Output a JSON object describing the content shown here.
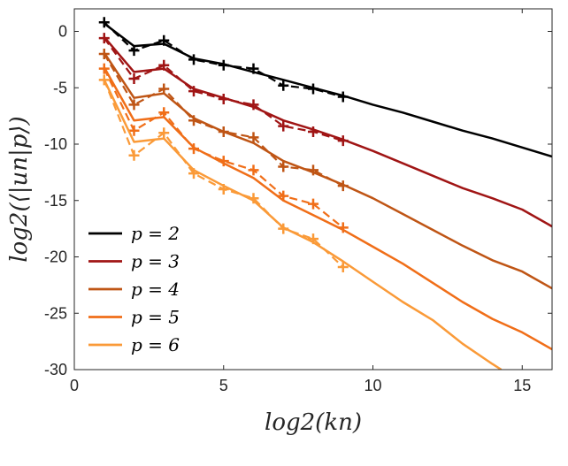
{
  "chart_data": {
    "type": "line",
    "xlabel": "log2(kn)",
    "ylabel": "log2(⟨|un|p⟩)",
    "xlim": [
      0,
      16
    ],
    "ylim": [
      -30,
      2
    ],
    "xticks": [
      0,
      5,
      10,
      15
    ],
    "yticks": [
      0,
      -5,
      -10,
      -15,
      -20,
      -25,
      -30
    ],
    "legend_position": "bottom-left",
    "grid": false,
    "series": [
      {
        "name": "p = 2",
        "color": "#000000",
        "solid": {
          "x": [
            1,
            2,
            3,
            4,
            5,
            6,
            7,
            8,
            9,
            10,
            11,
            12,
            13,
            14,
            15,
            16
          ],
          "y": [
            0.7,
            -1.3,
            -1.1,
            -2.4,
            -2.9,
            -3.6,
            -4.3,
            -5.0,
            -5.7,
            -6.5,
            -7.2,
            -8.0,
            -8.8,
            -9.5,
            -10.3,
            -11.1
          ]
        },
        "dashed": {
          "x": [
            1,
            2,
            3,
            4,
            5,
            6,
            7,
            8,
            9
          ],
          "y": [
            0.8,
            -1.7,
            -0.8,
            -2.5,
            -3.0,
            -3.3,
            -4.8,
            -5.1,
            -5.8
          ]
        }
      },
      {
        "name": "p = 3",
        "color": "#a01515",
        "solid": {
          "x": [
            1,
            2,
            3,
            4,
            5,
            6,
            7,
            8,
            9,
            10,
            11,
            12,
            13,
            14,
            15,
            16
          ],
          "y": [
            -0.5,
            -3.6,
            -3.3,
            -5.1,
            -5.9,
            -6.7,
            -7.9,
            -8.7,
            -9.6,
            -10.6,
            -11.7,
            -12.8,
            -13.9,
            -14.8,
            -15.8,
            -17.3
          ]
        },
        "dashed": {
          "x": [
            1,
            2,
            3,
            4,
            5,
            6,
            7,
            8,
            9
          ],
          "y": [
            -0.6,
            -4.2,
            -3.0,
            -5.3,
            -6.0,
            -6.5,
            -8.4,
            -8.9,
            -9.7
          ]
        }
      },
      {
        "name": "p = 4",
        "color": "#bf5515",
        "solid": {
          "x": [
            1,
            2,
            3,
            4,
            5,
            6,
            7,
            8,
            9,
            10,
            11,
            12,
            13,
            14,
            15,
            16
          ],
          "y": [
            -1.9,
            -5.9,
            -5.5,
            -7.7,
            -8.9,
            -9.9,
            -11.5,
            -12.5,
            -13.6,
            -14.8,
            -16.2,
            -17.6,
            -19.0,
            -20.3,
            -21.3,
            -22.8
          ]
        },
        "dashed": {
          "x": [
            1,
            2,
            3,
            4,
            5,
            6,
            7,
            8,
            9
          ],
          "y": [
            -2.0,
            -6.5,
            -5.1,
            -7.9,
            -8.9,
            -9.4,
            -12.0,
            -12.3,
            -13.7
          ]
        }
      },
      {
        "name": "p = 5",
        "color": "#f06e18",
        "solid": {
          "x": [
            1,
            2,
            3,
            4,
            5,
            6,
            7,
            8,
            9,
            10,
            11,
            12,
            13,
            14,
            15,
            16
          ],
          "y": [
            -3.2,
            -7.9,
            -7.6,
            -10.3,
            -11.7,
            -13.0,
            -15.0,
            -16.3,
            -17.6,
            -19.1,
            -20.6,
            -22.3,
            -24.0,
            -25.5,
            -26.7,
            -28.2
          ]
        },
        "dashed": {
          "x": [
            1,
            2,
            3,
            4,
            5,
            6,
            7,
            8,
            9
          ],
          "y": [
            -3.3,
            -8.8,
            -7.2,
            -10.4,
            -11.5,
            -12.3,
            -14.6,
            -15.3,
            -17.4
          ]
        }
      },
      {
        "name": "p = 6",
        "color": "#fa9a38",
        "solid": {
          "x": [
            1,
            2,
            3,
            4,
            5,
            6,
            7,
            8,
            9,
            10,
            11,
            12,
            13,
            14,
            14.3
          ],
          "y": [
            -4.3,
            -9.8,
            -9.5,
            -12.3,
            -13.7,
            -15.0,
            -17.4,
            -18.7,
            -20.4,
            -22.2,
            -24.0,
            -25.6,
            -27.7,
            -29.5,
            -30.0
          ]
        },
        "dashed": {
          "x": [
            1,
            2,
            3,
            4,
            5,
            6,
            7,
            8,
            9
          ],
          "y": [
            -4.3,
            -11.0,
            -9.0,
            -12.6,
            -14.0,
            -14.8,
            -17.5,
            -18.4,
            -20.9
          ]
        }
      }
    ]
  }
}
